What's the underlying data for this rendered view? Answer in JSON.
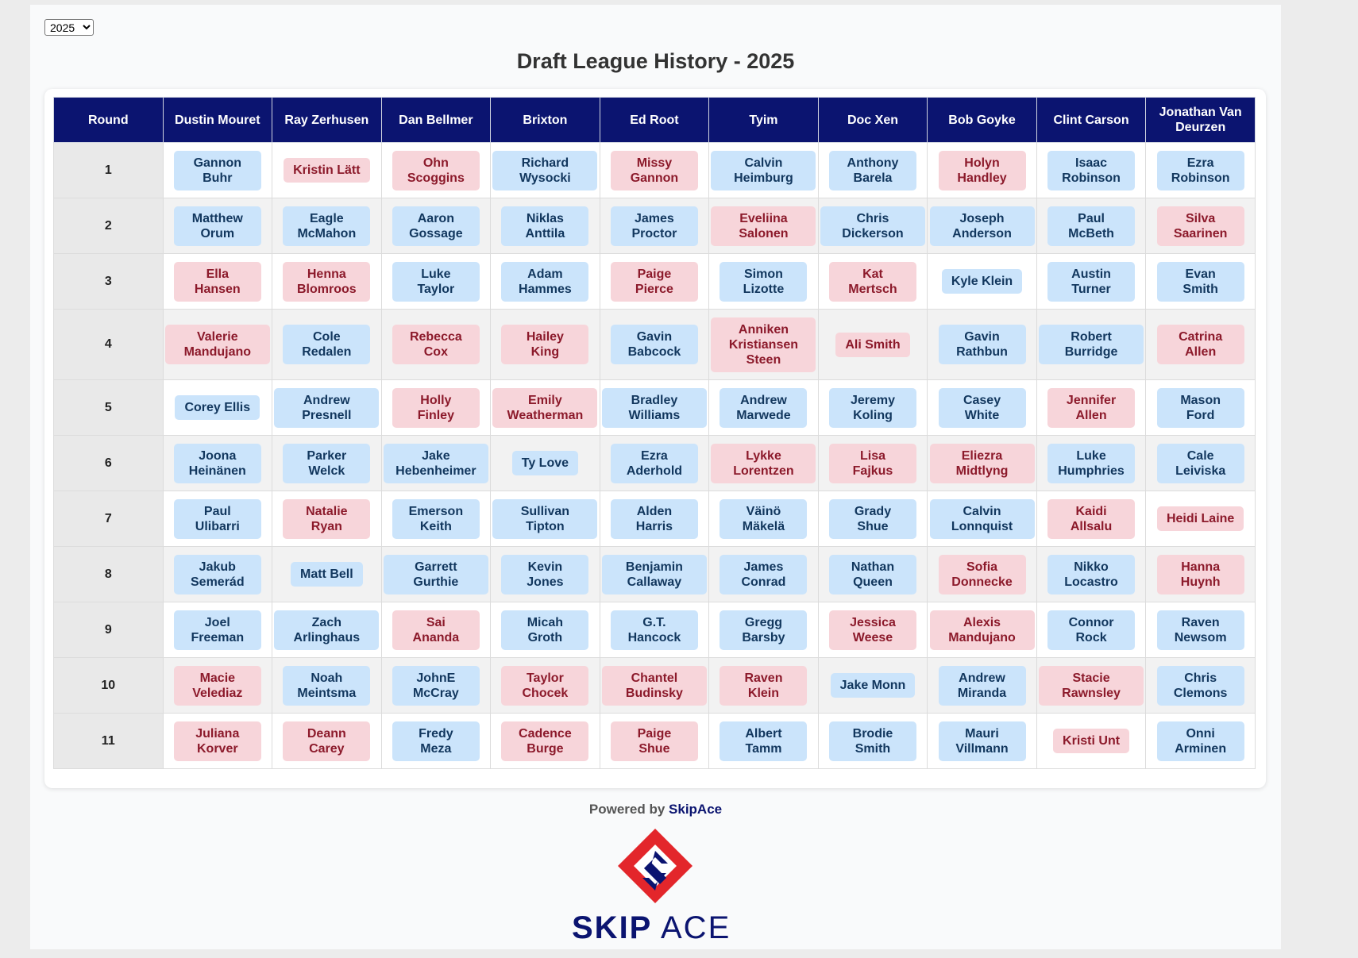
{
  "year_selector": {
    "value": "2025"
  },
  "title": "Draft League History - 2025",
  "table": {
    "headers": [
      "Round",
      "Dustin Mouret",
      "Ray Zerhusen",
      "Dan Bellmer",
      "Brixton",
      "Ed Root",
      "Tyim",
      "Doc Xen",
      "Bob Goyke",
      "Clint Carson",
      "Jonathan Van Deurzen"
    ],
    "rounds": [
      {
        "round": "1",
        "picks": [
          {
            "name": "Gannon Buhr",
            "color": "blue"
          },
          {
            "name": "Kristin Lätt",
            "color": "pink"
          },
          {
            "name": "Ohn Scoggins",
            "color": "pink"
          },
          {
            "name": "Richard Wysocki",
            "color": "blue"
          },
          {
            "name": "Missy Gannon",
            "color": "pink"
          },
          {
            "name": "Calvin Heimburg",
            "color": "blue"
          },
          {
            "name": "Anthony Barela",
            "color": "blue"
          },
          {
            "name": "Holyn Handley",
            "color": "pink"
          },
          {
            "name": "Isaac Robinson",
            "color": "blue"
          },
          {
            "name": "Ezra Robinson",
            "color": "blue"
          }
        ]
      },
      {
        "round": "2",
        "picks": [
          {
            "name": "Matthew Orum",
            "color": "blue"
          },
          {
            "name": "Eagle McMahon",
            "color": "blue"
          },
          {
            "name": "Aaron Gossage",
            "color": "blue"
          },
          {
            "name": "Niklas Anttila",
            "color": "blue"
          },
          {
            "name": "James Proctor",
            "color": "blue"
          },
          {
            "name": "Eveliina Salonen",
            "color": "pink"
          },
          {
            "name": "Chris Dickerson",
            "color": "blue"
          },
          {
            "name": "Joseph Anderson",
            "color": "blue"
          },
          {
            "name": "Paul McBeth",
            "color": "blue"
          },
          {
            "name": "Silva Saarinen",
            "color": "pink"
          }
        ]
      },
      {
        "round": "3",
        "picks": [
          {
            "name": "Ella Hansen",
            "color": "pink"
          },
          {
            "name": "Henna Blomroos",
            "color": "pink"
          },
          {
            "name": "Luke Taylor",
            "color": "blue"
          },
          {
            "name": "Adam Hammes",
            "color": "blue"
          },
          {
            "name": "Paige Pierce",
            "color": "pink"
          },
          {
            "name": "Simon Lizotte",
            "color": "blue"
          },
          {
            "name": "Kat Mertsch",
            "color": "pink"
          },
          {
            "name": "Kyle Klein",
            "color": "blue"
          },
          {
            "name": "Austin Turner",
            "color": "blue"
          },
          {
            "name": "Evan Smith",
            "color": "blue"
          }
        ]
      },
      {
        "round": "4",
        "picks": [
          {
            "name": "Valerie Mandujano",
            "color": "pink"
          },
          {
            "name": "Cole Redalen",
            "color": "blue"
          },
          {
            "name": "Rebecca Cox",
            "color": "pink"
          },
          {
            "name": "Hailey King",
            "color": "pink"
          },
          {
            "name": "Gavin Babcock",
            "color": "blue"
          },
          {
            "name": "Anniken Kristiansen Steen",
            "color": "pink"
          },
          {
            "name": "Ali Smith",
            "color": "pink"
          },
          {
            "name": "Gavin Rathbun",
            "color": "blue"
          },
          {
            "name": "Robert Burridge",
            "color": "blue"
          },
          {
            "name": "Catrina Allen",
            "color": "pink"
          }
        ]
      },
      {
        "round": "5",
        "picks": [
          {
            "name": "Corey Ellis",
            "color": "blue"
          },
          {
            "name": "Andrew Presnell",
            "color": "blue"
          },
          {
            "name": "Holly Finley",
            "color": "pink"
          },
          {
            "name": "Emily Weatherman",
            "color": "pink"
          },
          {
            "name": "Bradley Williams",
            "color": "blue"
          },
          {
            "name": "Andrew Marwede",
            "color": "blue"
          },
          {
            "name": "Jeremy Koling",
            "color": "blue"
          },
          {
            "name": "Casey White",
            "color": "blue"
          },
          {
            "name": "Jennifer Allen",
            "color": "pink"
          },
          {
            "name": "Mason Ford",
            "color": "blue"
          }
        ]
      },
      {
        "round": "6",
        "picks": [
          {
            "name": "Joona Heinänen",
            "color": "blue"
          },
          {
            "name": "Parker Welck",
            "color": "blue"
          },
          {
            "name": "Jake Hebenheimer",
            "color": "blue"
          },
          {
            "name": "Ty Love",
            "color": "blue"
          },
          {
            "name": "Ezra Aderhold",
            "color": "blue"
          },
          {
            "name": "Lykke Lorentzen",
            "color": "pink"
          },
          {
            "name": "Lisa Fajkus",
            "color": "pink"
          },
          {
            "name": "Eliezra Midtlyng",
            "color": "pink"
          },
          {
            "name": "Luke Humphries",
            "color": "blue"
          },
          {
            "name": "Cale Leiviska",
            "color": "blue"
          }
        ]
      },
      {
        "round": "7",
        "picks": [
          {
            "name": "Paul Ulibarri",
            "color": "blue"
          },
          {
            "name": "Natalie Ryan",
            "color": "pink"
          },
          {
            "name": "Emerson Keith",
            "color": "blue"
          },
          {
            "name": "Sullivan Tipton",
            "color": "blue"
          },
          {
            "name": "Alden Harris",
            "color": "blue"
          },
          {
            "name": "Väinö Mäkelä",
            "color": "blue"
          },
          {
            "name": "Grady Shue",
            "color": "blue"
          },
          {
            "name": "Calvin Lonnquist",
            "color": "blue"
          },
          {
            "name": "Kaidi Allsalu",
            "color": "pink"
          },
          {
            "name": "Heidi Laine",
            "color": "pink"
          }
        ]
      },
      {
        "round": "8",
        "picks": [
          {
            "name": "Jakub Semerád",
            "color": "blue"
          },
          {
            "name": "Matt Bell",
            "color": "blue"
          },
          {
            "name": "Garrett Gurthie",
            "color": "blue"
          },
          {
            "name": "Kevin Jones",
            "color": "blue"
          },
          {
            "name": "Benjamin Callaway",
            "color": "blue"
          },
          {
            "name": "James Conrad",
            "color": "blue"
          },
          {
            "name": "Nathan Queen",
            "color": "blue"
          },
          {
            "name": "Sofia Donnecke",
            "color": "pink"
          },
          {
            "name": "Nikko Locastro",
            "color": "blue"
          },
          {
            "name": "Hanna Huynh",
            "color": "pink"
          }
        ]
      },
      {
        "round": "9",
        "picks": [
          {
            "name": "Joel Freeman",
            "color": "blue"
          },
          {
            "name": "Zach Arlinghaus",
            "color": "blue"
          },
          {
            "name": "Sai Ananda",
            "color": "pink"
          },
          {
            "name": "Micah Groth",
            "color": "blue"
          },
          {
            "name": "G.T. Hancock",
            "color": "blue"
          },
          {
            "name": "Gregg Barsby",
            "color": "blue"
          },
          {
            "name": "Jessica Weese",
            "color": "pink"
          },
          {
            "name": "Alexis Mandujano",
            "color": "pink"
          },
          {
            "name": "Connor Rock",
            "color": "blue"
          },
          {
            "name": "Raven Newsom",
            "color": "blue"
          }
        ]
      },
      {
        "round": "10",
        "picks": [
          {
            "name": "Macie Velediaz",
            "color": "pink"
          },
          {
            "name": "Noah Meintsma",
            "color": "blue"
          },
          {
            "name": "JohnE McCray",
            "color": "blue"
          },
          {
            "name": "Taylor Chocek",
            "color": "pink"
          },
          {
            "name": "Chantel Budinsky",
            "color": "pink"
          },
          {
            "name": "Raven Klein",
            "color": "pink"
          },
          {
            "name": "Jake Monn",
            "color": "blue"
          },
          {
            "name": "Andrew Miranda",
            "color": "blue"
          },
          {
            "name": "Stacie Rawnsley",
            "color": "pink"
          },
          {
            "name": "Chris Clemons",
            "color": "blue"
          }
        ]
      },
      {
        "round": "11",
        "picks": [
          {
            "name": "Juliana Korver",
            "color": "pink"
          },
          {
            "name": "Deann Carey",
            "color": "pink"
          },
          {
            "name": "Fredy Meza",
            "color": "blue"
          },
          {
            "name": "Cadence Burge",
            "color": "pink"
          },
          {
            "name": "Paige Shue",
            "color": "pink"
          },
          {
            "name": "Albert Tamm",
            "color": "blue"
          },
          {
            "name": "Brodie Smith",
            "color": "blue"
          },
          {
            "name": "Mauri Villmann",
            "color": "blue"
          },
          {
            "name": "Kristi Unt",
            "color": "pink"
          },
          {
            "name": "Onni Arminen",
            "color": "blue"
          }
        ]
      }
    ]
  },
  "footer": {
    "powered_by": "Powered by",
    "brand": "SkipAce",
    "logo_text_left": "SKIP",
    "logo_text_right": "ACE"
  },
  "colors": {
    "header_bg": "#0b1470",
    "blue_pill_bg": "#cbe4fb",
    "blue_pill_text": "#12375e",
    "pink_pill_bg": "#f7d5da",
    "pink_pill_text": "#8c1a2b",
    "logo_red": "#e3262b",
    "logo_navy": "#0b1470"
  }
}
